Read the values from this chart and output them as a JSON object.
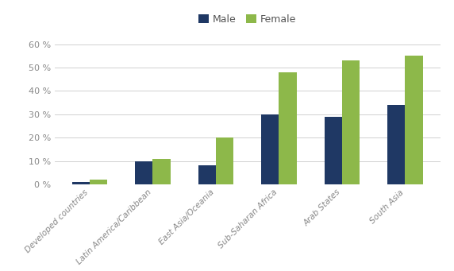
{
  "categories": [
    "Developed countries",
    "Latin America/Caribbean",
    "East Asia/Oceania",
    "Sub-Saharan Africa",
    "Arab States",
    "South Asia"
  ],
  "male_values": [
    1,
    10,
    8,
    30,
    29,
    34
  ],
  "female_values": [
    2,
    11,
    20,
    48,
    53,
    55
  ],
  "male_color": "#1F3864",
  "female_color": "#8db84a",
  "legend_labels": [
    "Male",
    "Female"
  ],
  "ylim": [
    0,
    65
  ],
  "yticks": [
    0,
    10,
    20,
    30,
    40,
    50,
    60
  ],
  "bar_width": 0.28,
  "grid_color": "#d0d0d0",
  "background_color": "#ffffff",
  "tick_color": "#888888",
  "label_fontsize": 7.5,
  "ytick_fontsize": 8
}
